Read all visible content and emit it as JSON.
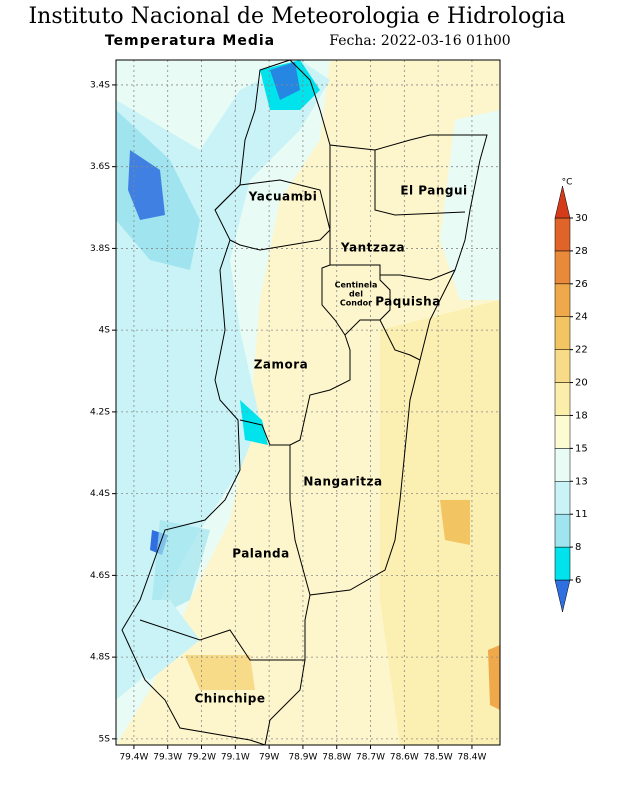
{
  "header": {
    "title": "Instituto Nacional de Meteorologia e Hidrologia",
    "subtitle": "Temperatura Media",
    "date": "Fecha: 2022-03-16 01h00"
  },
  "map": {
    "xlim": [
      -79.453,
      -78.317
    ],
    "ylim": [
      -5.015,
      -3.339
    ],
    "xticks": [
      {
        "value": -79.4,
        "label": "79.4W"
      },
      {
        "value": -79.3,
        "label": "79.3W"
      },
      {
        "value": -79.2,
        "label": "79.2W"
      },
      {
        "value": -79.1,
        "label": "79.1W"
      },
      {
        "value": -79.0,
        "label": "79W"
      },
      {
        "value": -78.9,
        "label": "78.9W"
      },
      {
        "value": -78.8,
        "label": "78.8W"
      },
      {
        "value": -78.7,
        "label": "78.7W"
      },
      {
        "value": -78.6,
        "label": "78.6W"
      },
      {
        "value": -78.5,
        "label": "78.5W"
      },
      {
        "value": -78.4,
        "label": "78.4W"
      }
    ],
    "yticks": [
      {
        "value": -3.4,
        "label": "3.4S"
      },
      {
        "value": -3.6,
        "label": "3.6S"
      },
      {
        "value": -3.8,
        "label": "3.8S"
      },
      {
        "value": -4.0,
        "label": "4S"
      },
      {
        "value": -4.2,
        "label": "4.2S"
      },
      {
        "value": -4.4,
        "label": "4.4S"
      },
      {
        "value": -4.6,
        "label": "4.6S"
      },
      {
        "value": -4.8,
        "label": "4.8S"
      },
      {
        "value": -5.0,
        "label": "5S"
      }
    ],
    "regions": [
      {
        "label": "Yacuambi"
      },
      {
        "label": "El Pangui"
      },
      {
        "label": "Yantzaza"
      },
      {
        "label": [
          "Centinela",
          "del",
          "Condor"
        ]
      },
      {
        "label": "Paquisha"
      },
      {
        "label": "Zamora"
      },
      {
        "label": "Nangaritza"
      },
      {
        "label": "Palanda"
      },
      {
        "label": "Chinchipe"
      }
    ]
  },
  "colorbar": {
    "unit": "°C",
    "ticks": [
      6,
      8,
      11,
      13,
      15,
      18,
      20,
      22,
      24,
      26,
      28,
      30
    ],
    "colors": [
      "#2f6fe0",
      "#00e3ec",
      "#9fe4ef",
      "#c9f3f6",
      "#e9fbf5",
      "#fdfbd2",
      "#fbeeab",
      "#f7db88",
      "#f2c462",
      "#efa94b",
      "#e98a3a",
      "#e0632a",
      "#d33b1a"
    ]
  }
}
